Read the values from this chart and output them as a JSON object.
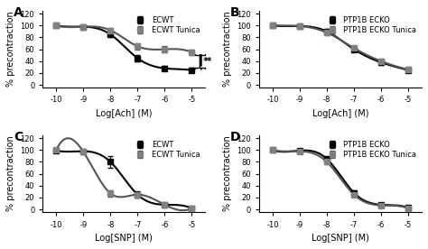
{
  "panel_A": {
    "label": "A",
    "xlabel": "Log[Ach] (M)",
    "ylabel": "% precontraction",
    "xlim": [
      -10.5,
      -4.5
    ],
    "ylim": [
      -5,
      125
    ],
    "xticks": [
      -10,
      -9,
      -8,
      -7,
      -6,
      -5
    ],
    "yticks": [
      0,
      20,
      40,
      60,
      80,
      100,
      120
    ],
    "line1_label": "ECWT",
    "line2_label": "ECWT Tunica",
    "line1_x": [
      -10,
      -9,
      -8,
      -7,
      -6,
      -5
    ],
    "line1_y": [
      100,
      98,
      85,
      45,
      28,
      25
    ],
    "line1_err": [
      2,
      3,
      5,
      5,
      4,
      4
    ],
    "line2_x": [
      -10,
      -9,
      -8,
      -7,
      -6,
      -5
    ],
    "line2_y": [
      100,
      98,
      92,
      65,
      60,
      55
    ],
    "line2_err": [
      2,
      3,
      4,
      5,
      5,
      5
    ],
    "annotation": "**",
    "show_sig": true
  },
  "panel_B": {
    "label": "B",
    "xlabel": "Log[Ach] (M)",
    "ylabel": "% precontraction",
    "xlim": [
      -10.5,
      -4.5
    ],
    "ylim": [
      -5,
      125
    ],
    "xticks": [
      -10,
      -9,
      -8,
      -7,
      -6,
      -5
    ],
    "yticks": [
      0,
      20,
      40,
      60,
      80,
      100,
      120
    ],
    "line1_label": "PTP1B ECKO",
    "line2_label": "PTP1B ECKO Tunica",
    "line1_x": [
      -10,
      -9,
      -8,
      -7,
      -6,
      -5
    ],
    "line1_y": [
      100,
      99,
      90,
      60,
      38,
      25
    ],
    "line1_err": [
      2,
      2,
      4,
      4,
      4,
      4
    ],
    "line2_x": [
      -10,
      -9,
      -8,
      -7,
      -6,
      -5
    ],
    "line2_y": [
      100,
      99,
      88,
      62,
      40,
      26
    ],
    "line2_err": [
      2,
      2,
      4,
      4,
      4,
      4
    ],
    "show_sig": false
  },
  "panel_C": {
    "label": "C",
    "xlabel": "Log[SNP] (M)",
    "ylabel": "% precontraction",
    "xlim": [
      -10.5,
      -4.5
    ],
    "ylim": [
      -5,
      125
    ],
    "xticks": [
      -10,
      -9,
      -8,
      -7,
      -6,
      -5
    ],
    "yticks": [
      0,
      20,
      40,
      60,
      80,
      100,
      120
    ],
    "line1_label": "ECWT",
    "line2_label": "ECWT Tunica",
    "line1_x": [
      -10,
      -9,
      -8,
      -7,
      -6,
      -5
    ],
    "line1_y": [
      99,
      98,
      80,
      25,
      8,
      2
    ],
    "line1_err": [
      2,
      3,
      10,
      5,
      3,
      2
    ],
    "line2_x": [
      -10,
      -9,
      -8,
      -7,
      -6,
      -5
    ],
    "line2_y": [
      100,
      97,
      27,
      25,
      8,
      2
    ],
    "line2_err": [
      2,
      3,
      5,
      4,
      3,
      2
    ],
    "show_sig": false
  },
  "panel_D": {
    "label": "D",
    "xlabel": "Log[SNP] (M)",
    "ylabel": "% precontraction",
    "xlim": [
      -10.5,
      -4.5
    ],
    "ylim": [
      -5,
      125
    ],
    "xticks": [
      -10,
      -9,
      -8,
      -7,
      -6,
      -5
    ],
    "yticks": [
      0,
      20,
      40,
      60,
      80,
      100,
      120
    ],
    "line1_label": "PTP1B ECKO",
    "line2_label": "PTP1B ECKO Tunica",
    "line1_x": [
      -10,
      -9,
      -8,
      -7,
      -6,
      -5
    ],
    "line1_y": [
      100,
      99,
      85,
      28,
      8,
      3
    ],
    "line1_err": [
      2,
      2,
      4,
      4,
      3,
      2
    ],
    "line2_x": [
      -10,
      -9,
      -8,
      -7,
      -6,
      -5
    ],
    "line2_y": [
      100,
      98,
      80,
      25,
      7,
      2
    ],
    "line2_err": [
      2,
      2,
      4,
      4,
      3,
      2
    ],
    "show_sig": false
  },
  "line_color1": "#000000",
  "line_color2": "#555555",
  "marker": "s",
  "markersize": 4,
  "linewidth": 1.5,
  "bg_color": "#ffffff",
  "tick_fontsize": 6,
  "label_fontsize": 7,
  "legend_fontsize": 6,
  "panel_label_fontsize": 10
}
